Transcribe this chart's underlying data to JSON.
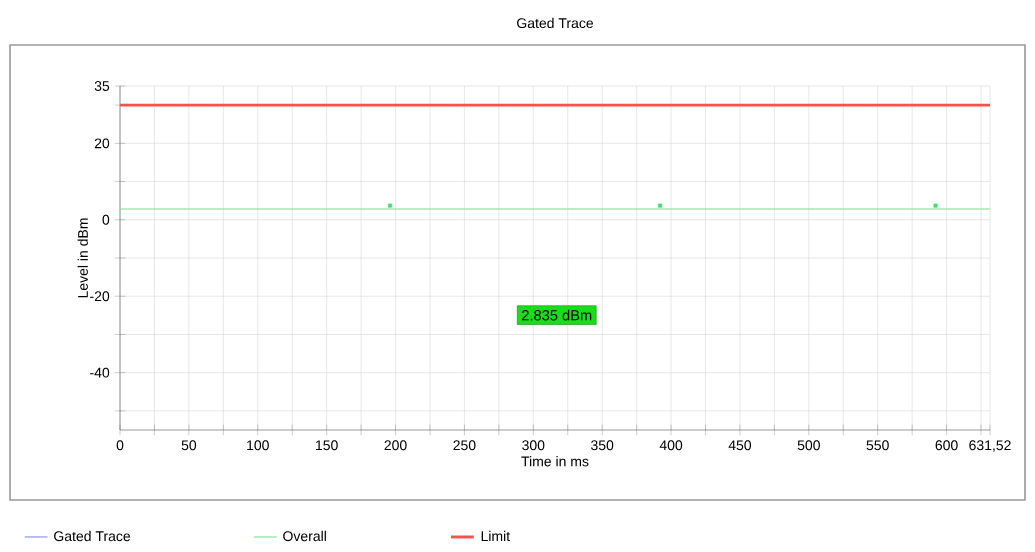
{
  "chart_data": {
    "type": "line",
    "title": "Gated Trace",
    "xlabel": "Time in ms",
    "ylabel": "Level in dBm",
    "xlim": [
      0,
      631.52
    ],
    "ylim": [
      -55,
      35
    ],
    "xticks": [
      0,
      {
        "value": 25,
        "label": null
      },
      50,
      {
        "value": 75,
        "label": null
      },
      100,
      {
        "value": 125,
        "label": null
      },
      150,
      {
        "value": 175,
        "label": null
      },
      200,
      {
        "value": 225,
        "label": null
      },
      250,
      {
        "value": 275,
        "label": null
      },
      300,
      {
        "value": 325,
        "label": null
      },
      350,
      {
        "value": 375,
        "label": null
      },
      400,
      {
        "value": 425,
        "label": null
      },
      450,
      {
        "value": 475,
        "label": null
      },
      500,
      {
        "value": 525,
        "label": null
      },
      550,
      {
        "value": 575,
        "label": null
      },
      600,
      {
        "value": 625,
        "label": null
      },
      {
        "value": 631.52,
        "label": "631,52"
      }
    ],
    "yticks": [
      {
        "value": -50,
        "label": null
      },
      -40,
      {
        "value": -30,
        "label": null
      },
      -20,
      {
        "value": -10,
        "label": null
      },
      0,
      {
        "value": 10,
        "label": null
      },
      20,
      {
        "value": 30,
        "label": null
      },
      35
    ],
    "grid": true,
    "legend": "bottom",
    "series": [
      {
        "name": "Gated Trace",
        "color": "#8080ff",
        "values": [
          null,
          null
        ]
      },
      {
        "name": "Overall",
        "color": "#70e090",
        "x": [
          0,
          631.52
        ],
        "values": [
          2.835,
          2.835
        ]
      },
      {
        "name": "Limit",
        "color": "#ff5050",
        "x": [
          0,
          631.52
        ],
        "values": [
          30,
          30
        ]
      },
      {
        "type": "scatter",
        "color": "#40e070",
        "marker": "square",
        "x": [
          196,
          392,
          592
        ],
        "values": [
          3.7,
          3.7,
          3.7
        ]
      }
    ],
    "annotations": [
      "2.835 dBm"
    ]
  }
}
